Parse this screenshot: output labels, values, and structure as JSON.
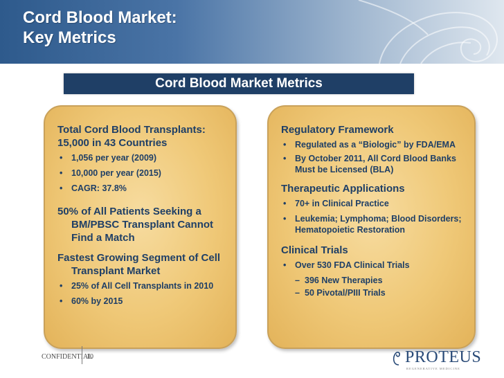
{
  "header": {
    "title_line1": "Cord Blood Market:",
    "title_line2": "Key Metrics"
  },
  "banner": "Cord Blood Market Metrics",
  "left_panel": {
    "heading1": "Total Cord Blood Transplants: 15,000 in 43 Countries",
    "bullets1": [
      "1,056 per year (2009)",
      "10,000 per year (2015)",
      "CAGR: 37.8%"
    ],
    "heading2": "50% of All Patients Seeking a BM/PBSC Transplant Cannot Find a Match",
    "heading3": "Fastest Growing Segment of Cell Transplant Market",
    "bullets3": [
      "25% of All Cell Transplants in 2010",
      "60% by 2015"
    ]
  },
  "right_panel": {
    "heading1": "Regulatory Framework",
    "bullets1": [
      "Regulated as a “Biologic” by FDA/EMA",
      "By October 2011, All Cord Blood Banks Must be Licensed (BLA)"
    ],
    "heading2": "Therapeutic Applications",
    "bullets2": [
      "70+ in Clinical Practice",
      "Leukemia; Lymphoma; Blood Disorders; Hematopoietic Restoration"
    ],
    "heading3": "Clinical Trials",
    "bullets3": [
      "Over 530 FDA Clinical Trials"
    ],
    "sub3": [
      "396 New Therapies",
      "50 Pivotal/PIII Trials"
    ]
  },
  "footer": {
    "confidential": "CONFIDENTIAL",
    "page_number": "10",
    "logo_text": "PROTEUS",
    "logo_tagline": "REGENERATIVE MEDICINE"
  },
  "colors": {
    "header_start": "#2e5a8c",
    "banner": "#1f3f66",
    "panel_fill": "#efc877",
    "text": "#1f3f66"
  }
}
